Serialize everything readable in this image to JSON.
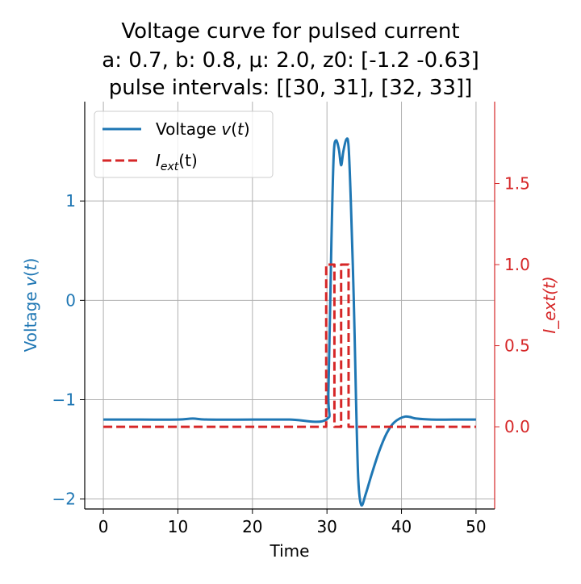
{
  "chart_data": {
    "type": "line",
    "title": [
      "Voltage curve for pulsed current",
      "a: 0.7, b: 0.8, μ: 2.0, z0: [-1.2  -0.63]",
      "pulse intervals: [[30, 31], [32, 33]]"
    ],
    "xlabel": "Time",
    "ylabel_left": "Voltage v(t)",
    "ylabel_right": "I_ext(t)",
    "xlim": [
      -2.5,
      52.5
    ],
    "ylim_left": [
      -2.1,
      2.0
    ],
    "ylim_right": [
      -0.507,
      2.005
    ],
    "xticks": [
      0,
      10,
      20,
      30,
      40,
      50
    ],
    "xtick_labels": [
      "0",
      "10",
      "20",
      "30",
      "40",
      "50"
    ],
    "yticks_left": [
      1,
      0,
      -1,
      -2
    ],
    "ytick_labels_left": [
      "1",
      "0",
      "−1",
      "−2"
    ],
    "yticks_right": [
      1.5,
      1.0,
      0.5,
      0.0
    ],
    "ytick_labels_right": [
      "1.5",
      "1.0",
      "0.5",
      "0.0"
    ],
    "grid": true,
    "legend_position": "top-left",
    "colors": {
      "voltage": "#1f77b4",
      "current": "#d62728"
    },
    "series": [
      {
        "name": "Voltage v(t)",
        "legend_label": "Voltage",
        "axis": "left",
        "style": "solid",
        "x": [
          0,
          5,
          10,
          12,
          14,
          20,
          25,
          29.9,
          30.2,
          30.6,
          30.9,
          31.2,
          31.6,
          31.9,
          32.2,
          32.6,
          32.9,
          33.2,
          33.6,
          33.9,
          34.2,
          34.6,
          35.2,
          36,
          37,
          38,
          39,
          40.5,
          42,
          44,
          47,
          50
        ],
        "y": [
          -1.2,
          -1.2,
          -1.2,
          -1.19,
          -1.2,
          -1.2,
          -1.2,
          -1.2,
          -0.9,
          0.6,
          1.45,
          1.61,
          1.52,
          1.36,
          1.5,
          1.62,
          1.55,
          1.0,
          0.0,
          -1.0,
          -1.8,
          -2.06,
          -1.95,
          -1.75,
          -1.52,
          -1.34,
          -1.23,
          -1.17,
          -1.19,
          -1.2,
          -1.2,
          -1.2
        ]
      },
      {
        "name": "I_ext(t)",
        "legend_label": "I",
        "legend_sub": "ext",
        "legend_suffix": "(t)",
        "axis": "right",
        "style": "dashed",
        "x": [
          0,
          29.9,
          29.9,
          31.0,
          31.0,
          31.9,
          31.9,
          32.9,
          32.9,
          50
        ],
        "y": [
          0,
          0,
          1,
          1,
          0,
          0,
          1,
          1,
          0,
          0
        ]
      }
    ]
  }
}
